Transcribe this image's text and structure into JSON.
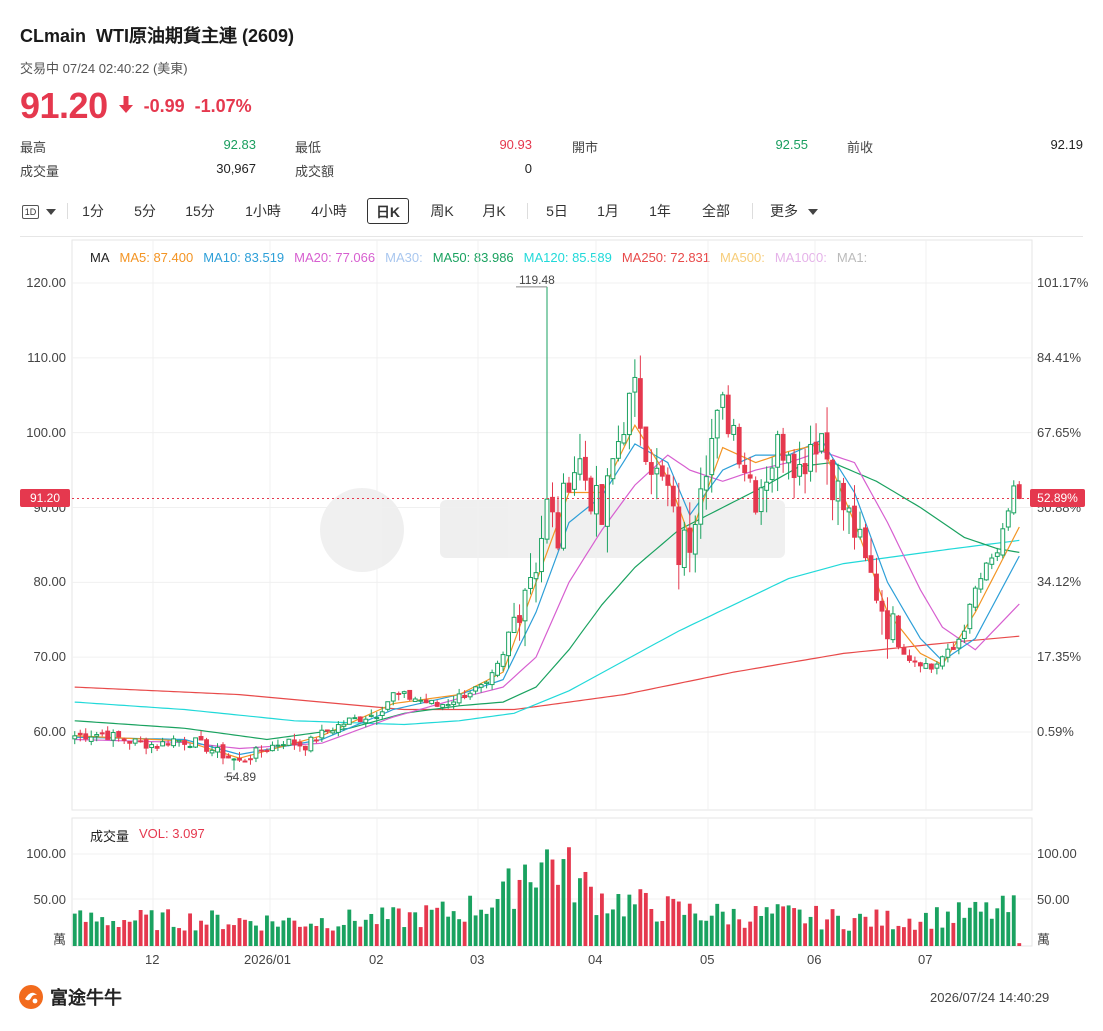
{
  "header": {
    "symbol": "CLmain",
    "name": "WTI原油期貨主連 (2609)",
    "status": "交易中 07/24 02:40:22 (美東)",
    "price": "91.20",
    "change": "-0.99",
    "change_pct": "-1.07%"
  },
  "stats": [
    {
      "label": "最高",
      "value": "92.83",
      "tone": "green"
    },
    {
      "label": "最低",
      "value": "90.93",
      "tone": "red"
    },
    {
      "label": "開市",
      "value": "92.55",
      "tone": "green"
    },
    {
      "label": "前收",
      "value": "92.19",
      "tone": "plain"
    },
    {
      "label": "成交量",
      "value": "30,967",
      "tone": "plain"
    },
    {
      "label": "成交額",
      "value": "0",
      "tone": "plain"
    }
  ],
  "toolbar": {
    "type_btn": "1D",
    "periods": [
      "1分",
      "5分",
      "15分",
      "1小時",
      "4小時",
      "日K",
      "周K",
      "月K",
      "5日",
      "1月",
      "1年",
      "全部",
      "更多"
    ],
    "active": "日K"
  },
  "ma_legend": [
    {
      "label": "MA",
      "color": "#222222"
    },
    {
      "label": "MA5: 87.400",
      "color": "#f39423"
    },
    {
      "label": "MA10: 83.519",
      "color": "#2d9fd8"
    },
    {
      "label": "MA20: 77.066",
      "color": "#d75fd0"
    },
    {
      "label": "MA30:",
      "color": "#a9c7ef"
    },
    {
      "label": "MA50: 83.986",
      "color": "#1aa260"
    },
    {
      "label": "MA120: 85.589",
      "color": "#21d9d9"
    },
    {
      "label": "MA250: 72.831",
      "color": "#e84a4a"
    },
    {
      "label": "MA500:",
      "color": "#f7cd7a"
    },
    {
      "label": "MA1000:",
      "color": "#e5b3e9"
    },
    {
      "label": "MA1:",
      "color": "#bbbbbb"
    }
  ],
  "price_axis": {
    "left_ticks": [
      "120.00",
      "110.00",
      "100.00",
      "90.00",
      "80.00",
      "70.00",
      "60.00"
    ],
    "right_ticks": [
      "101.17%",
      "84.41%",
      "67.65%",
      "50.88%",
      "34.12%",
      "17.35%",
      "0.59%"
    ],
    "current_left": "91.20",
    "current_right": "52.89%"
  },
  "annotations": {
    "high": "119.48",
    "low": "54.89"
  },
  "volume": {
    "title": "成交量",
    "legend": "VOL: 3.097",
    "ticks": [
      "100.00",
      "50.00"
    ],
    "unit": "萬"
  },
  "x_axis": [
    "12",
    "2026/01",
    "02",
    "03",
    "04",
    "05",
    "06",
    "07"
  ],
  "footer": {
    "brand": "富途牛牛",
    "timestamp": "2026/07/24 14:40:29"
  },
  "colors": {
    "up": "#1aa260",
    "down": "#e5384e"
  },
  "chart_data": {
    "type": "candlestick",
    "yrange": [
      48,
      125
    ],
    "candle_anchors": [
      [
        0,
        59.5
      ],
      [
        5,
        59.8
      ],
      [
        10,
        58.8
      ],
      [
        15,
        58.2
      ],
      [
        18,
        59.0
      ],
      [
        22,
        58.6
      ],
      [
        26,
        57.3
      ],
      [
        30,
        56.0
      ],
      [
        33,
        57.2
      ],
      [
        38,
        58.8
      ],
      [
        42,
        58.2
      ],
      [
        46,
        60.2
      ],
      [
        50,
        61.5
      ],
      [
        55,
        62.5
      ],
      [
        58,
        65.0
      ],
      [
        62,
        64.5
      ],
      [
        66,
        63.5
      ],
      [
        68,
        64.0
      ],
      [
        72,
        65.5
      ],
      [
        75,
        66.0
      ],
      [
        78,
        70.0
      ],
      [
        80,
        75.0
      ],
      [
        82,
        80.0
      ],
      [
        84,
        83.0
      ],
      [
        86,
        90.0
      ],
      [
        88,
        86.0
      ],
      [
        90,
        95.0
      ],
      [
        92,
        96.0
      ],
      [
        94,
        92.0
      ],
      [
        96,
        88.0
      ],
      [
        98,
        96.0
      ],
      [
        100,
        102.0
      ],
      [
        102,
        105.0
      ],
      [
        104,
        99.0
      ],
      [
        106,
        94.0
      ],
      [
        108,
        92.0
      ],
      [
        110,
        84.0
      ],
      [
        112,
        86.0
      ],
      [
        114,
        95.0
      ],
      [
        116,
        99.0
      ],
      [
        118,
        103.0
      ],
      [
        120,
        101.0
      ],
      [
        122,
        96.0
      ],
      [
        124,
        92.0
      ],
      [
        126,
        95.0
      ],
      [
        128,
        98.0
      ],
      [
        130,
        99.0
      ],
      [
        132,
        95.0
      ],
      [
        134,
        99.0
      ],
      [
        136,
        100.0
      ],
      [
        138,
        94.0
      ],
      [
        140,
        90.0
      ],
      [
        142,
        87.0
      ],
      [
        144,
        82.0
      ],
      [
        146,
        79.0
      ],
      [
        148,
        75.0
      ],
      [
        150,
        72.0
      ],
      [
        152,
        70.0
      ],
      [
        154,
        69.5
      ],
      [
        156,
        68.5
      ],
      [
        158,
        70.0
      ],
      [
        160,
        71.0
      ],
      [
        162,
        74.0
      ],
      [
        164,
        79.0
      ],
      [
        166,
        82.0
      ],
      [
        168,
        84.0
      ],
      [
        170,
        89.0
      ],
      [
        171,
        93.0
      ],
      [
        172,
        91.2
      ]
    ],
    "ma5": [
      [
        0,
        59.5
      ],
      [
        20,
        58.8
      ],
      [
        30,
        56.5
      ],
      [
        45,
        59.5
      ],
      [
        58,
        63.8
      ],
      [
        70,
        65.0
      ],
      [
        78,
        68.0
      ],
      [
        84,
        80.0
      ],
      [
        90,
        92.0
      ],
      [
        96,
        92.0
      ],
      [
        102,
        101.0
      ],
      [
        108,
        94.0
      ],
      [
        112,
        86.0
      ],
      [
        118,
        98.0
      ],
      [
        124,
        96.0
      ],
      [
        130,
        97.5
      ],
      [
        136,
        98.5
      ],
      [
        142,
        88.0
      ],
      [
        148,
        76.0
      ],
      [
        154,
        70.5
      ],
      [
        158,
        69.0
      ],
      [
        164,
        76.0
      ],
      [
        172,
        87.4
      ]
    ],
    "ma10": [
      [
        0,
        59.3
      ],
      [
        20,
        59.0
      ],
      [
        30,
        57.0
      ],
      [
        45,
        59.0
      ],
      [
        58,
        63.0
      ],
      [
        70,
        65.0
      ],
      [
        78,
        67.0
      ],
      [
        84,
        76.0
      ],
      [
        90,
        88.0
      ],
      [
        96,
        91.5
      ],
      [
        102,
        98.5
      ],
      [
        108,
        96.0
      ],
      [
        112,
        89.0
      ],
      [
        118,
        95.0
      ],
      [
        124,
        97.0
      ],
      [
        130,
        97.0
      ],
      [
        136,
        99.0
      ],
      [
        142,
        92.0
      ],
      [
        148,
        80.0
      ],
      [
        154,
        72.5
      ],
      [
        158,
        69.5
      ],
      [
        164,
        72.5
      ],
      [
        172,
        83.5
      ]
    ],
    "ma20": [
      [
        0,
        59.0
      ],
      [
        20,
        58.6
      ],
      [
        30,
        57.8
      ],
      [
        45,
        58.5
      ],
      [
        58,
        62.0
      ],
      [
        70,
        64.5
      ],
      [
        78,
        66.0
      ],
      [
        84,
        70.0
      ],
      [
        90,
        80.0
      ],
      [
        96,
        87.0
      ],
      [
        102,
        93.0
      ],
      [
        108,
        97.0
      ],
      [
        112,
        95.0
      ],
      [
        118,
        93.5
      ],
      [
        124,
        95.0
      ],
      [
        130,
        96.0
      ],
      [
        136,
        97.5
      ],
      [
        142,
        96.0
      ],
      [
        148,
        88.0
      ],
      [
        154,
        79.0
      ],
      [
        158,
        74.0
      ],
      [
        164,
        71.0
      ],
      [
        172,
        77.1
      ]
    ],
    "ma50": [
      [
        0,
        61.5
      ],
      [
        20,
        60.5
      ],
      [
        35,
        59.0
      ],
      [
        50,
        60.5
      ],
      [
        60,
        62.5
      ],
      [
        70,
        63.5
      ],
      [
        78,
        64.0
      ],
      [
        84,
        66.0
      ],
      [
        90,
        71.0
      ],
      [
        96,
        77.0
      ],
      [
        102,
        82.0
      ],
      [
        110,
        87.0
      ],
      [
        118,
        90.0
      ],
      [
        126,
        93.0
      ],
      [
        132,
        95.5
      ],
      [
        138,
        96.0
      ],
      [
        146,
        93.5
      ],
      [
        154,
        90.0
      ],
      [
        162,
        86.0
      ],
      [
        168,
        84.5
      ],
      [
        172,
        84.0
      ]
    ],
    "ma120": [
      [
        0,
        64.0
      ],
      [
        20,
        63.0
      ],
      [
        40,
        61.5
      ],
      [
        60,
        61.0
      ],
      [
        70,
        61.5
      ],
      [
        80,
        62.5
      ],
      [
        90,
        65.5
      ],
      [
        100,
        69.5
      ],
      [
        110,
        73.5
      ],
      [
        120,
        77.0
      ],
      [
        130,
        80.5
      ],
      [
        140,
        82.5
      ],
      [
        150,
        83.5
      ],
      [
        160,
        84.5
      ],
      [
        172,
        85.6
      ]
    ],
    "ma250": [
      [
        0,
        66.0
      ],
      [
        30,
        65.0
      ],
      [
        60,
        63.0
      ],
      [
        80,
        63.0
      ],
      [
        100,
        65.0
      ],
      [
        120,
        68.0
      ],
      [
        140,
        70.5
      ],
      [
        160,
        72.0
      ],
      [
        172,
        72.8
      ]
    ],
    "volume_anchors": [
      [
        0,
        30
      ],
      [
        20,
        30
      ],
      [
        40,
        28
      ],
      [
        60,
        32
      ],
      [
        70,
        40
      ],
      [
        78,
        55
      ],
      [
        82,
        90
      ],
      [
        86,
        100
      ],
      [
        88,
        95
      ],
      [
        92,
        70
      ],
      [
        96,
        55
      ],
      [
        100,
        50
      ],
      [
        110,
        40
      ],
      [
        120,
        35
      ],
      [
        130,
        35
      ],
      [
        140,
        30
      ],
      [
        150,
        30
      ],
      [
        160,
        35
      ],
      [
        168,
        40
      ],
      [
        171,
        42
      ],
      [
        172,
        3
      ]
    ]
  }
}
